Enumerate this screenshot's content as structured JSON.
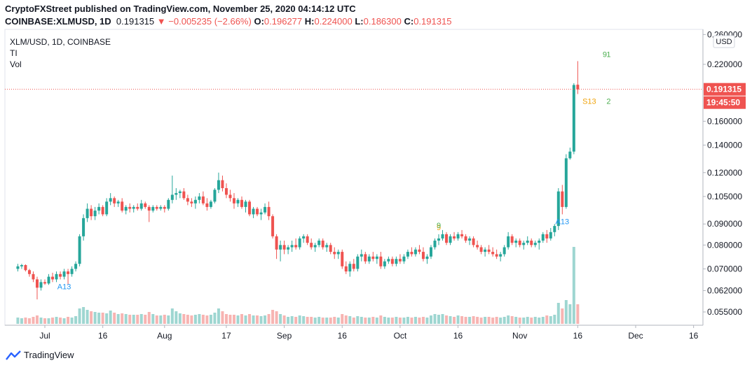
{
  "header": {
    "line1": "CryptoFXStreet published on TradingView.com, November 25, 2020 04:14:12 UTC",
    "symbol": "COINBASE:XLMUSD, 1D",
    "last": "0.191315",
    "change_arrow": "▼",
    "change": "−0.005235 (−2.66%)",
    "o_label": "O:",
    "o": "0.196277",
    "h_label": "H:",
    "h": "0.224000",
    "l_label": "L:",
    "l": "0.186300",
    "c_label": "C:",
    "c": "0.191315"
  },
  "legend": {
    "title": "XLM/USD, 1D, COINBASE",
    "indicator1": "TI",
    "indicator2": "Vol"
  },
  "footer": {
    "brand": "TradingView"
  },
  "colors": {
    "up": "#26a69a",
    "down": "#ef5350",
    "up_vol": "#9ed6d1",
    "down_vol": "#f7b4b2"
  },
  "chart_data": {
    "type": "candlestick",
    "symbol": "XLM/USD",
    "interval": "1D",
    "exchange": "COINBASE",
    "currency_button": "USD",
    "y_scale": "log",
    "y_ticks": [
      0.26,
      0.22,
      0.16,
      0.14,
      0.12,
      0.105,
      0.09,
      0.08,
      0.07,
      0.062,
      0.055
    ],
    "y_tick_labels": [
      "0.260000",
      "0.220000",
      "0.160000",
      "0.140000",
      "0.120000",
      "0.105000",
      "0.090000",
      "0.080000",
      "0.070000",
      "0.062000",
      "0.055000"
    ],
    "x_ticks": [
      {
        "label": "Jul",
        "date": "2020-07-01"
      },
      {
        "label": "16",
        "date": "2020-07-16"
      },
      {
        "label": "Aug",
        "date": "2020-08-01"
      },
      {
        "label": "17",
        "date": "2020-08-17"
      },
      {
        "label": "Sep",
        "date": "2020-09-01"
      },
      {
        "label": "16",
        "date": "2020-09-16"
      },
      {
        "label": "Oct",
        "date": "2020-10-01"
      },
      {
        "label": "16",
        "date": "2020-10-16"
      },
      {
        "label": "Nov",
        "date": "2020-11-01"
      },
      {
        "label": "16",
        "date": "2020-11-16"
      },
      {
        "label": "Dec",
        "date": "2020-12-01"
      },
      {
        "label": "16",
        "date": "2020-12-16"
      }
    ],
    "first_date": "2020-06-24",
    "last_price": "0.191315",
    "countdown": "19:45:50",
    "price_line": 0.191315,
    "candles": [
      [
        0.07,
        0.072,
        0.069,
        0.071
      ],
      [
        0.071,
        0.072,
        0.07,
        0.0715
      ],
      [
        0.0715,
        0.0718,
        0.069,
        0.0695
      ],
      [
        0.0695,
        0.07,
        0.067,
        0.068
      ],
      [
        0.068,
        0.069,
        0.065,
        0.066
      ],
      [
        0.066,
        0.067,
        0.059,
        0.063
      ],
      [
        0.063,
        0.066,
        0.062,
        0.065
      ],
      [
        0.065,
        0.066,
        0.064,
        0.0645
      ],
      [
        0.0645,
        0.068,
        0.064,
        0.067
      ],
      [
        0.067,
        0.0685,
        0.065,
        0.066
      ],
      [
        0.066,
        0.069,
        0.065,
        0.068
      ],
      [
        0.068,
        0.069,
        0.066,
        0.067
      ],
      [
        0.067,
        0.07,
        0.066,
        0.069
      ],
      [
        0.069,
        0.07,
        0.064,
        0.068
      ],
      [
        0.068,
        0.071,
        0.067,
        0.07
      ],
      [
        0.07,
        0.073,
        0.069,
        0.072
      ],
      [
        0.072,
        0.085,
        0.071,
        0.084
      ],
      [
        0.084,
        0.095,
        0.082,
        0.093
      ],
      [
        0.093,
        0.101,
        0.091,
        0.098
      ],
      [
        0.098,
        0.1,
        0.092,
        0.094
      ],
      [
        0.094,
        0.099,
        0.092,
        0.097
      ],
      [
        0.097,
        0.101,
        0.095,
        0.099
      ],
      [
        0.099,
        0.1,
        0.094,
        0.095
      ],
      [
        0.095,
        0.104,
        0.094,
        0.102
      ],
      [
        0.102,
        0.107,
        0.1,
        0.104
      ],
      [
        0.104,
        0.105,
        0.099,
        0.101
      ],
      [
        0.101,
        0.103,
        0.099,
        0.102
      ],
      [
        0.102,
        0.104,
        0.096,
        0.097
      ],
      [
        0.097,
        0.1,
        0.095,
        0.099
      ],
      [
        0.099,
        0.101,
        0.096,
        0.098
      ],
      [
        0.098,
        0.1,
        0.096,
        0.099
      ],
      [
        0.099,
        0.101,
        0.097,
        0.098
      ],
      [
        0.098,
        0.103,
        0.097,
        0.101
      ],
      [
        0.101,
        0.102,
        0.098,
        0.099
      ],
      [
        0.099,
        0.1,
        0.091,
        0.097
      ],
      [
        0.097,
        0.1,
        0.096,
        0.099
      ],
      [
        0.099,
        0.1,
        0.097,
        0.098
      ],
      [
        0.098,
        0.1,
        0.097,
        0.099
      ],
      [
        0.099,
        0.1,
        0.096,
        0.098
      ],
      [
        0.098,
        0.104,
        0.097,
        0.103
      ],
      [
        0.103,
        0.118,
        0.101,
        0.106
      ],
      [
        0.106,
        0.11,
        0.103,
        0.107
      ],
      [
        0.107,
        0.109,
        0.104,
        0.108
      ],
      [
        0.108,
        0.11,
        0.103,
        0.104
      ],
      [
        0.104,
        0.106,
        0.1,
        0.102
      ],
      [
        0.102,
        0.104,
        0.099,
        0.101
      ],
      [
        0.101,
        0.105,
        0.098,
        0.103
      ],
      [
        0.103,
        0.107,
        0.101,
        0.105
      ],
      [
        0.105,
        0.108,
        0.1,
        0.101
      ],
      [
        0.101,
        0.104,
        0.097,
        0.099
      ],
      [
        0.099,
        0.103,
        0.098,
        0.102
      ],
      [
        0.102,
        0.11,
        0.101,
        0.109
      ],
      [
        0.109,
        0.12,
        0.107,
        0.115
      ],
      [
        0.115,
        0.118,
        0.108,
        0.11
      ],
      [
        0.11,
        0.113,
        0.104,
        0.106
      ],
      [
        0.106,
        0.109,
        0.102,
        0.104
      ],
      [
        0.104,
        0.107,
        0.098,
        0.101
      ],
      [
        0.101,
        0.104,
        0.099,
        0.103
      ],
      [
        0.103,
        0.105,
        0.098,
        0.099
      ],
      [
        0.099,
        0.103,
        0.096,
        0.102
      ],
      [
        0.102,
        0.103,
        0.094,
        0.095
      ],
      [
        0.095,
        0.099,
        0.093,
        0.098
      ],
      [
        0.098,
        0.099,
        0.094,
        0.095
      ],
      [
        0.095,
        0.098,
        0.092,
        0.096
      ],
      [
        0.096,
        0.101,
        0.095,
        0.099
      ],
      [
        0.099,
        0.102,
        0.092,
        0.094
      ],
      [
        0.094,
        0.095,
        0.083,
        0.084
      ],
      [
        0.084,
        0.085,
        0.074,
        0.078
      ],
      [
        0.078,
        0.082,
        0.073,
        0.08
      ],
      [
        0.08,
        0.082,
        0.076,
        0.078
      ],
      [
        0.078,
        0.08,
        0.076,
        0.079
      ],
      [
        0.079,
        0.082,
        0.077,
        0.08
      ],
      [
        0.08,
        0.083,
        0.078,
        0.079
      ],
      [
        0.079,
        0.084,
        0.078,
        0.083
      ],
      [
        0.083,
        0.085,
        0.081,
        0.084
      ],
      [
        0.084,
        0.085,
        0.08,
        0.081
      ],
      [
        0.081,
        0.083,
        0.078,
        0.079
      ],
      [
        0.079,
        0.081,
        0.077,
        0.08
      ],
      [
        0.08,
        0.083,
        0.079,
        0.082
      ],
      [
        0.082,
        0.083,
        0.078,
        0.079
      ],
      [
        0.079,
        0.081,
        0.077,
        0.08
      ],
      [
        0.08,
        0.081,
        0.076,
        0.077
      ],
      [
        0.077,
        0.079,
        0.074,
        0.076
      ],
      [
        0.076,
        0.078,
        0.074,
        0.077
      ],
      [
        0.077,
        0.078,
        0.07,
        0.071
      ],
      [
        0.071,
        0.073,
        0.068,
        0.069
      ],
      [
        0.069,
        0.073,
        0.067,
        0.072
      ],
      [
        0.072,
        0.074,
        0.069,
        0.07
      ],
      [
        0.07,
        0.076,
        0.069,
        0.075
      ],
      [
        0.075,
        0.078,
        0.073,
        0.076
      ],
      [
        0.076,
        0.077,
        0.072,
        0.073
      ],
      [
        0.073,
        0.076,
        0.072,
        0.075
      ],
      [
        0.075,
        0.077,
        0.073,
        0.074
      ],
      [
        0.074,
        0.076,
        0.072,
        0.075
      ],
      [
        0.075,
        0.077,
        0.07,
        0.071
      ],
      [
        0.071,
        0.074,
        0.07,
        0.073
      ],
      [
        0.073,
        0.075,
        0.072,
        0.074
      ],
      [
        0.074,
        0.075,
        0.071,
        0.072
      ],
      [
        0.072,
        0.075,
        0.071,
        0.074
      ],
      [
        0.074,
        0.076,
        0.072,
        0.073
      ],
      [
        0.073,
        0.076,
        0.072,
        0.075
      ],
      [
        0.075,
        0.078,
        0.074,
        0.077
      ],
      [
        0.077,
        0.079,
        0.075,
        0.076
      ],
      [
        0.076,
        0.079,
        0.075,
        0.078
      ],
      [
        0.078,
        0.08,
        0.076,
        0.077
      ],
      [
        0.077,
        0.079,
        0.073,
        0.074
      ],
      [
        0.074,
        0.076,
        0.072,
        0.075
      ],
      [
        0.075,
        0.08,
        0.074,
        0.079
      ],
      [
        0.079,
        0.083,
        0.078,
        0.082
      ],
      [
        0.082,
        0.085,
        0.08,
        0.083
      ],
      [
        0.083,
        0.087,
        0.082,
        0.085
      ],
      [
        0.085,
        0.086,
        0.08,
        0.081
      ],
      [
        0.081,
        0.085,
        0.08,
        0.084
      ],
      [
        0.084,
        0.086,
        0.082,
        0.083
      ],
      [
        0.083,
        0.086,
        0.082,
        0.085
      ],
      [
        0.085,
        0.087,
        0.083,
        0.084
      ],
      [
        0.084,
        0.085,
        0.081,
        0.082
      ],
      [
        0.082,
        0.084,
        0.08,
        0.083
      ],
      [
        0.083,
        0.084,
        0.079,
        0.08
      ],
      [
        0.08,
        0.082,
        0.078,
        0.079
      ],
      [
        0.079,
        0.08,
        0.076,
        0.077
      ],
      [
        0.077,
        0.079,
        0.075,
        0.078
      ],
      [
        0.078,
        0.08,
        0.076,
        0.077
      ],
      [
        0.077,
        0.079,
        0.075,
        0.076
      ],
      [
        0.076,
        0.078,
        0.074,
        0.075
      ],
      [
        0.075,
        0.077,
        0.073,
        0.076
      ],
      [
        0.076,
        0.08,
        0.075,
        0.079
      ],
      [
        0.079,
        0.086,
        0.078,
        0.084
      ],
      [
        0.084,
        0.085,
        0.08,
        0.081
      ],
      [
        0.081,
        0.083,
        0.079,
        0.082
      ],
      [
        0.082,
        0.083,
        0.079,
        0.08
      ],
      [
        0.08,
        0.082,
        0.078,
        0.081
      ],
      [
        0.081,
        0.084,
        0.08,
        0.082
      ],
      [
        0.082,
        0.083,
        0.079,
        0.08
      ],
      [
        0.08,
        0.082,
        0.079,
        0.081
      ],
      [
        0.081,
        0.083,
        0.078,
        0.082
      ],
      [
        0.082,
        0.086,
        0.081,
        0.085
      ],
      [
        0.085,
        0.087,
        0.081,
        0.083
      ],
      [
        0.083,
        0.088,
        0.082,
        0.086
      ],
      [
        0.086,
        0.09,
        0.084,
        0.089
      ],
      [
        0.089,
        0.11,
        0.087,
        0.108
      ],
      [
        0.108,
        0.112,
        0.095,
        0.099
      ],
      [
        0.099,
        0.133,
        0.098,
        0.13
      ],
      [
        0.13,
        0.138,
        0.129,
        0.135
      ],
      [
        0.135,
        0.198,
        0.133,
        0.196
      ],
      [
        0.1963,
        0.224,
        0.1863,
        0.1913
      ]
    ],
    "volume": [
      9,
      8,
      9,
      8,
      10,
      12,
      9,
      8,
      8,
      9,
      10,
      9,
      8,
      10,
      9,
      11,
      22,
      24,
      20,
      18,
      17,
      16,
      16,
      15,
      19,
      16,
      14,
      15,
      14,
      13,
      13,
      13,
      14,
      13,
      17,
      14,
      12,
      12,
      13,
      12,
      22,
      18,
      15,
      14,
      13,
      12,
      13,
      14,
      13,
      12,
      13,
      16,
      22,
      18,
      14,
      13,
      13,
      12,
      14,
      12,
      14,
      12,
      12,
      11,
      12,
      14,
      20,
      18,
      14,
      12,
      10,
      11,
      10,
      12,
      11,
      10,
      10,
      9,
      10,
      9,
      9,
      9,
      10,
      9,
      14,
      12,
      11,
      9,
      11,
      10,
      9,
      9,
      10,
      9,
      12,
      10,
      9,
      9,
      10,
      9,
      9,
      10,
      9,
      10,
      9,
      10,
      9,
      12,
      14,
      13,
      14,
      12,
      11,
      10,
      12,
      11,
      10,
      10,
      11,
      10,
      9,
      10,
      10,
      9,
      10,
      9,
      10,
      12,
      11,
      10,
      9,
      9,
      10,
      9,
      10,
      9,
      10,
      12,
      11,
      13,
      30,
      22,
      34,
      28,
      110,
      28
    ],
    "signals": [
      {
        "label": "A13",
        "date": "2020-07-06",
        "position": "below",
        "color": "#2196f3"
      },
      {
        "label": "9",
        "date": "2020-10-11",
        "position": "above",
        "color": "#f0a30a"
      },
      {
        "label": "9",
        "date": "2020-10-11",
        "position": "above",
        "color": "#4caf50"
      },
      {
        "label": "A13",
        "date": "2020-11-12",
        "position": "below",
        "color": "#2196f3"
      },
      {
        "label": "S13",
        "date": "2020-11-19",
        "position": "below",
        "color": "#f0a30a"
      },
      {
        "label": "9",
        "date": "2020-11-23",
        "position": "above",
        "color": "#4caf50"
      },
      {
        "label": "1",
        "date": "2020-11-24",
        "position": "above",
        "color": "#4caf50"
      },
      {
        "label": "2",
        "date": "2020-11-24",
        "position": "below",
        "color": "#4caf50"
      }
    ]
  }
}
